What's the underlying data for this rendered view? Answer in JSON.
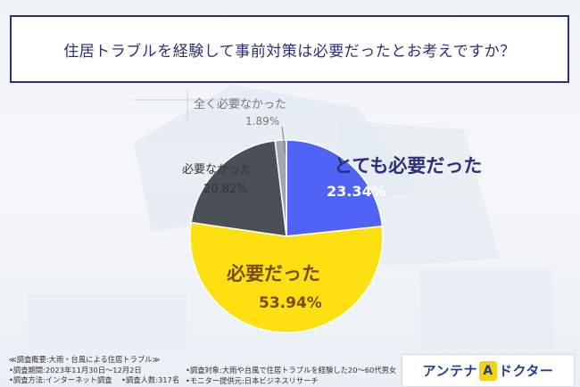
{
  "title": "住居トラブルを経験して事前対策は必要だったとお考えですか？",
  "chart_data": {
    "type": "pie",
    "title": "住居トラブルを経験して事前対策は必要だったとお考えですか？",
    "slices": [
      {
        "label": "とても必要だった",
        "value": 23.34,
        "display": "23.34%",
        "color": "#4f63f5"
      },
      {
        "label": "必要だった",
        "value": 53.94,
        "display": "53.94%",
        "color": "#fde012"
      },
      {
        "label": "必要なかった",
        "value": 20.82,
        "display": "20.82%",
        "color": "#4b5058"
      },
      {
        "label": "全く必要なかった",
        "value": 1.89,
        "display": "1.89%",
        "color": "#a2a7ad"
      }
    ],
    "start": "12 o'clock",
    "direction": "clockwise"
  },
  "footer": {
    "line1": "≪調査概要:大雨・台風による住居トラブル≫",
    "line2": "•調査期間:2023年11月30日〜12月2日",
    "line3a": "•調査方法:インターネット調査",
    "line3b": "•調査人数:317名",
    "mid1": "•調査対象:大雨や台風で住居トラブルを経験した20〜60代男女",
    "mid2": "•モニター提供元:日本ビジネスリサーチ"
  },
  "logo": {
    "part1": "アンテナ",
    "mark": "A",
    "part2": "ドクター"
  }
}
